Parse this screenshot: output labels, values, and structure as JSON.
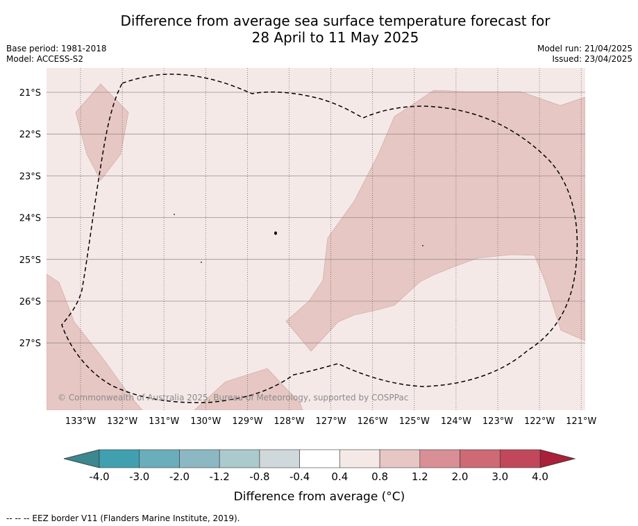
{
  "title": {
    "line1": "Difference from average sea surface temperature forecast for",
    "line2": "28 April to 11 May 2025"
  },
  "meta_left": {
    "base_period": "Base period: 1981-2018",
    "model": "Model: ACCESS-S2"
  },
  "meta_right": {
    "model_run": "Model run: 21/04/2025",
    "issued": "Issued: 23/04/2025"
  },
  "map": {
    "background_color": "#f5e9e8",
    "anomaly_fill_color": "#e6c7c3",
    "lat_labels": [
      "21°S",
      "22°S",
      "23°S",
      "24°S",
      "25°S",
      "26°S",
      "27°S"
    ],
    "lon_labels": [
      "133°W",
      "132°W",
      "131°W",
      "130°W",
      "129°W",
      "128°W",
      "127°W",
      "126°W",
      "125°W",
      "124°W",
      "123°W",
      "122°W",
      "121°W"
    ],
    "copyright": "© Commonwealth of Australia 2025, Bureau of Meteorology, supported by COSPPac"
  },
  "colorbar": {
    "ticks": [
      "-4.0",
      "-3.0",
      "-2.0",
      "-1.2",
      "-0.8",
      "-0.4",
      "0.4",
      "0.8",
      "1.2",
      "2.0",
      "3.0",
      "4.0"
    ],
    "colors": [
      "#41a0b0",
      "#6aadbb",
      "#8cb8c3",
      "#abcacd",
      "#cfd8da",
      "#ffffff",
      "#f5e9e8",
      "#e6c7c3",
      "#d88f96",
      "#cd6a74",
      "#c1485a"
    ],
    "under_color": "#3c8790",
    "over_color": "#aa1f3a",
    "label": "Difference from average (°C)"
  },
  "footnote": "--  --  -- EEZ border V11 (Flanders Marine Institute, 2019)."
}
